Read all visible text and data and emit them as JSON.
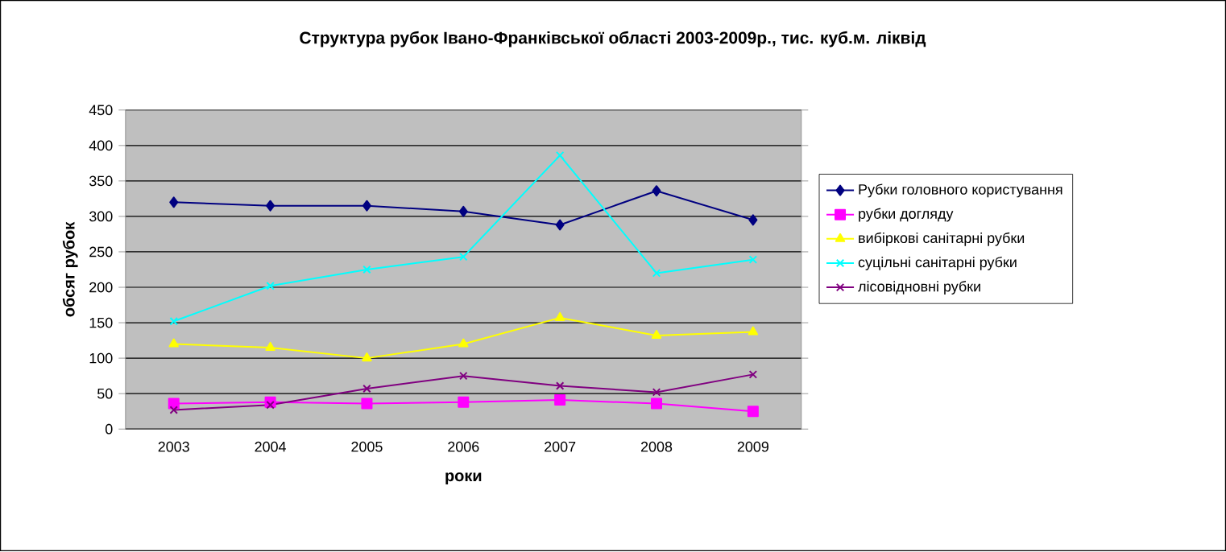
{
  "chart_data": {
    "type": "line",
    "title": "Структура рубок Івано-Франківської області 2003-2009р., тис. куб.м. ліквід",
    "xlabel": "роки",
    "ylabel": "обсяг рубок",
    "categories": [
      "2003",
      "2004",
      "2005",
      "2006",
      "2007",
      "2008",
      "2009"
    ],
    "series": [
      {
        "name": "Рубки головного користування",
        "color": "#000080",
        "marker": "diamond",
        "values": [
          320,
          315,
          315,
          307,
          288,
          336,
          295
        ]
      },
      {
        "name": "рубки догляду",
        "color": "#ff00ff",
        "marker": "square",
        "values": [
          36,
          38,
          36,
          38,
          41,
          36,
          25
        ]
      },
      {
        "name": "вибіркові санітарні рубки",
        "color": "#ffff00",
        "marker": "triangle",
        "values": [
          120,
          115,
          100,
          120,
          157,
          132,
          137
        ]
      },
      {
        "name": "суцільні санітарні рубки",
        "color": "#00ffff",
        "marker": "cross",
        "values": [
          152,
          202,
          225,
          243,
          386,
          220,
          239
        ]
      },
      {
        "name": "лісовідновні рубки",
        "color": "#800080",
        "marker": "cross",
        "values": [
          27,
          34,
          57,
          75,
          61,
          52,
          77
        ]
      }
    ],
    "ylim": [
      0,
      450
    ],
    "yticks": [
      0,
      50,
      100,
      150,
      200,
      250,
      300,
      350,
      400,
      450
    ],
    "grid": "y",
    "legend": "right"
  }
}
